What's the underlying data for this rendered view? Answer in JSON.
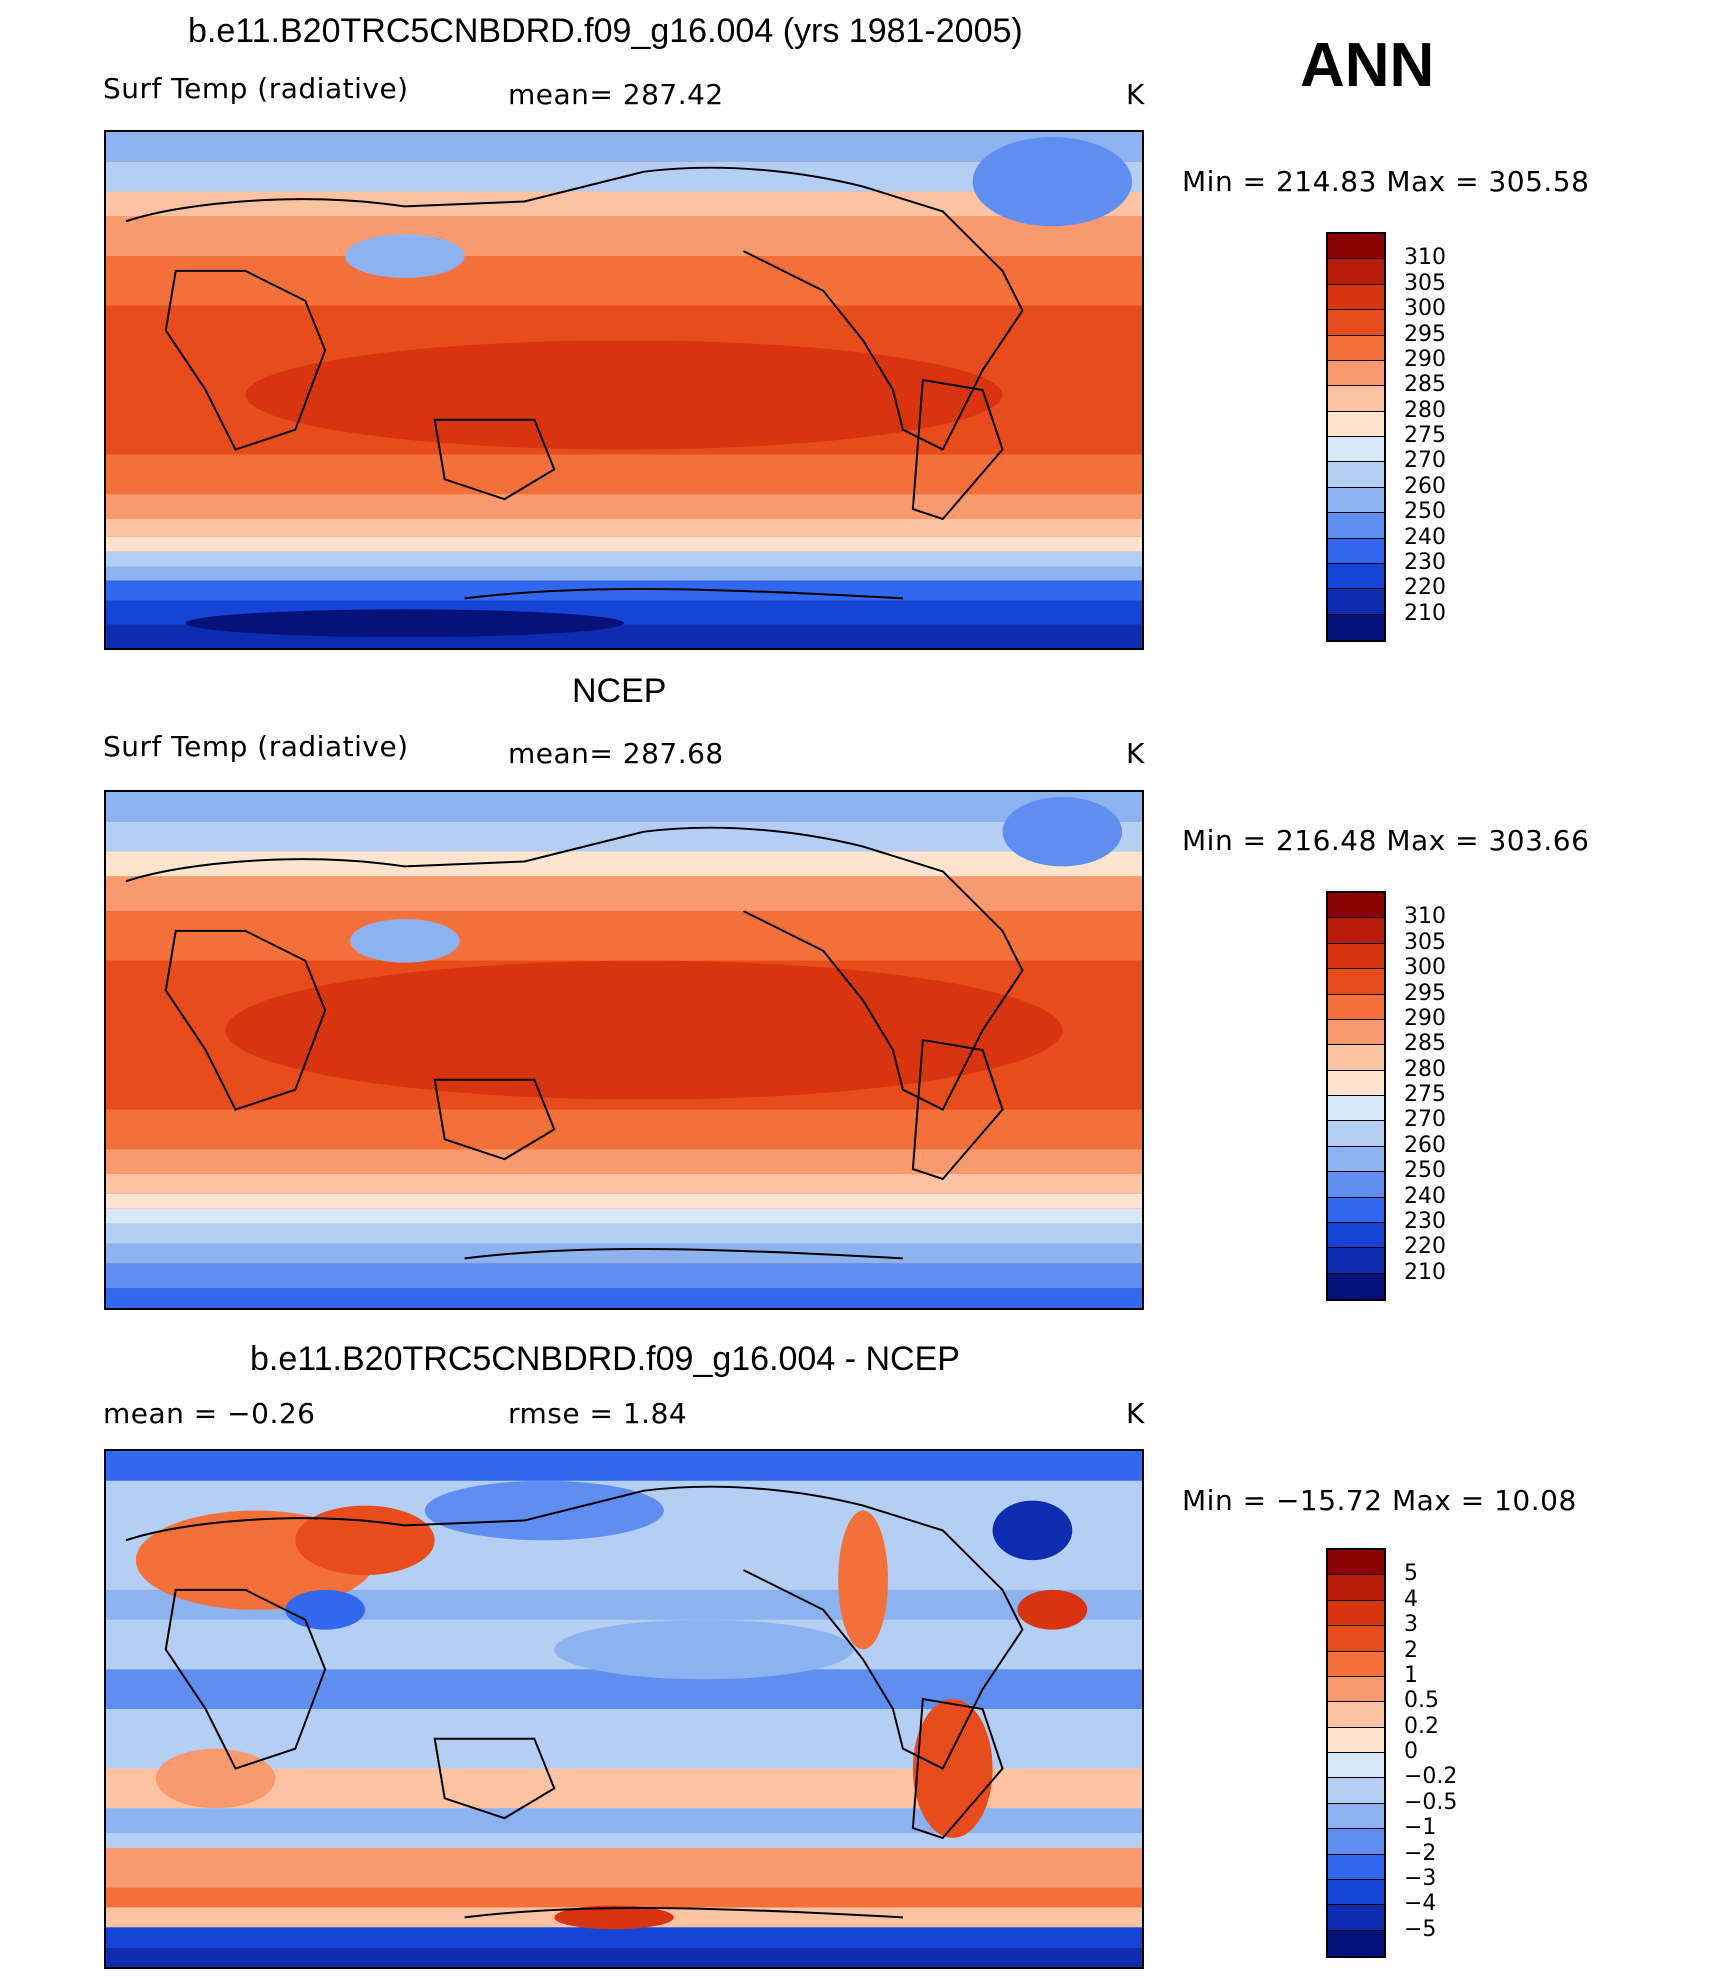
{
  "season": "ANN",
  "panels": [
    {
      "title": "b.e11.B20TRC5CNBDRD.f09_g16.004 (yrs 1981-2005)",
      "left_label": "Surf Temp (radiative)",
      "center_label": "mean= 287.42",
      "unit": "K",
      "minmax": "Min = 214.83 Max = 305.58",
      "colorbar": {
        "labels": [
          "310",
          "305",
          "300",
          "295",
          "290",
          "285",
          "280",
          "275",
          "270",
          "260",
          "250",
          "240",
          "230",
          "220",
          "210"
        ],
        "colors": [
          "#8b0000",
          "#b71c0a",
          "#d7340f",
          "#e84c1d",
          "#f4703a",
          "#f99a6e",
          "#fcc3a3",
          "#fde4cf",
          "#d8e8f8",
          "#b4cff3",
          "#8db2f0",
          "#5f8ef0",
          "#3268ef",
          "#1644d9",
          "#0d2cb0",
          "#06127a"
        ]
      }
    },
    {
      "title": "NCEP",
      "left_label": "Surf Temp (radiative)",
      "center_label": "mean= 287.68",
      "unit": "K",
      "minmax": "Min = 216.48 Max = 303.66",
      "colorbar": {
        "labels": [
          "310",
          "305",
          "300",
          "295",
          "290",
          "285",
          "280",
          "275",
          "270",
          "260",
          "250",
          "240",
          "230",
          "220",
          "210"
        ],
        "colors": [
          "#8b0000",
          "#b71c0a",
          "#d7340f",
          "#e84c1d",
          "#f4703a",
          "#f99a6e",
          "#fcc3a3",
          "#fde4cf",
          "#d8e8f8",
          "#b4cff3",
          "#8db2f0",
          "#5f8ef0",
          "#3268ef",
          "#1644d9",
          "#0d2cb0",
          "#06127a"
        ]
      }
    },
    {
      "title": "b.e11.B20TRC5CNBDRD.f09_g16.004 - NCEP",
      "left_label": "mean =    −0.26",
      "center_label": "rmse =    1.84",
      "unit": "K",
      "minmax": "Min = −15.72 Max =   10.08",
      "colorbar": {
        "labels": [
          "5",
          "4",
          "3",
          "2",
          "1",
          "0.5",
          "0.2",
          "0",
          "−0.2",
          "−0.5",
          "−1",
          "−2",
          "−3",
          "−4",
          "−5"
        ],
        "colors": [
          "#8b0000",
          "#b71c0a",
          "#d7340f",
          "#e84c1d",
          "#f4703a",
          "#f99a6e",
          "#fcc3a3",
          "#fde4cf",
          "#d8e8f8",
          "#b4cff3",
          "#8db2f0",
          "#5f8ef0",
          "#3268ef",
          "#1644d9",
          "#0d2cb0",
          "#06127a"
        ]
      }
    }
  ]
}
